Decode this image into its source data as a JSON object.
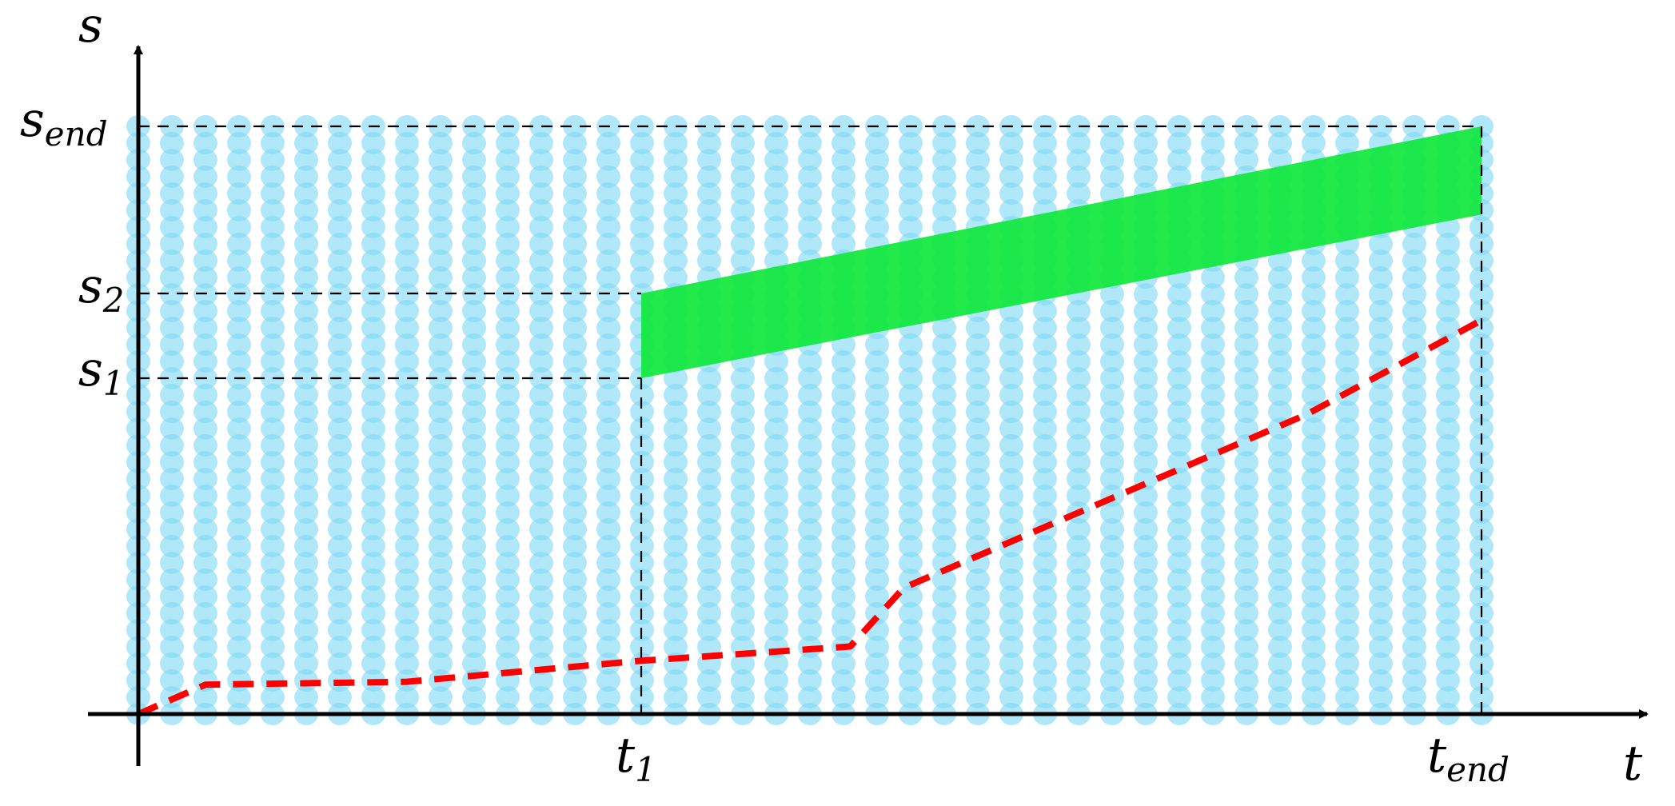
{
  "labels": {
    "s_axis": "s",
    "t_axis": "t",
    "s_end_main": "s",
    "s_end_sub": "end",
    "s2_main": "s",
    "s2_sub": "2",
    "s1_main": "s",
    "s1_sub": "1",
    "t1_main": "t",
    "t1_sub": "1",
    "t_end_main": "t",
    "t_end_sub": "end"
  },
  "colors": {
    "grid_dots": "#7fd8f5",
    "band": "#10e83c",
    "path": "#ff0000",
    "axes": "#000000",
    "guides": "#000000"
  },
  "grid": {
    "columns": 41,
    "rows": 36
  },
  "feasible_band": {
    "t_start": "t1",
    "t_end": "t_end",
    "lower_start": "s1",
    "upper_start": "s2",
    "upper_end": "s_end",
    "lower_end_fraction_of_s_end": 0.85
  },
  "path": {
    "style": "dashed",
    "points": [
      [
        0.0,
        0.0
      ],
      [
        0.05,
        0.05
      ],
      [
        0.2,
        0.055
      ],
      [
        0.37,
        0.09
      ],
      [
        0.53,
        0.115
      ],
      [
        0.57,
        0.215
      ],
      [
        0.87,
        0.51
      ],
      [
        1.0,
        0.67
      ]
    ]
  }
}
